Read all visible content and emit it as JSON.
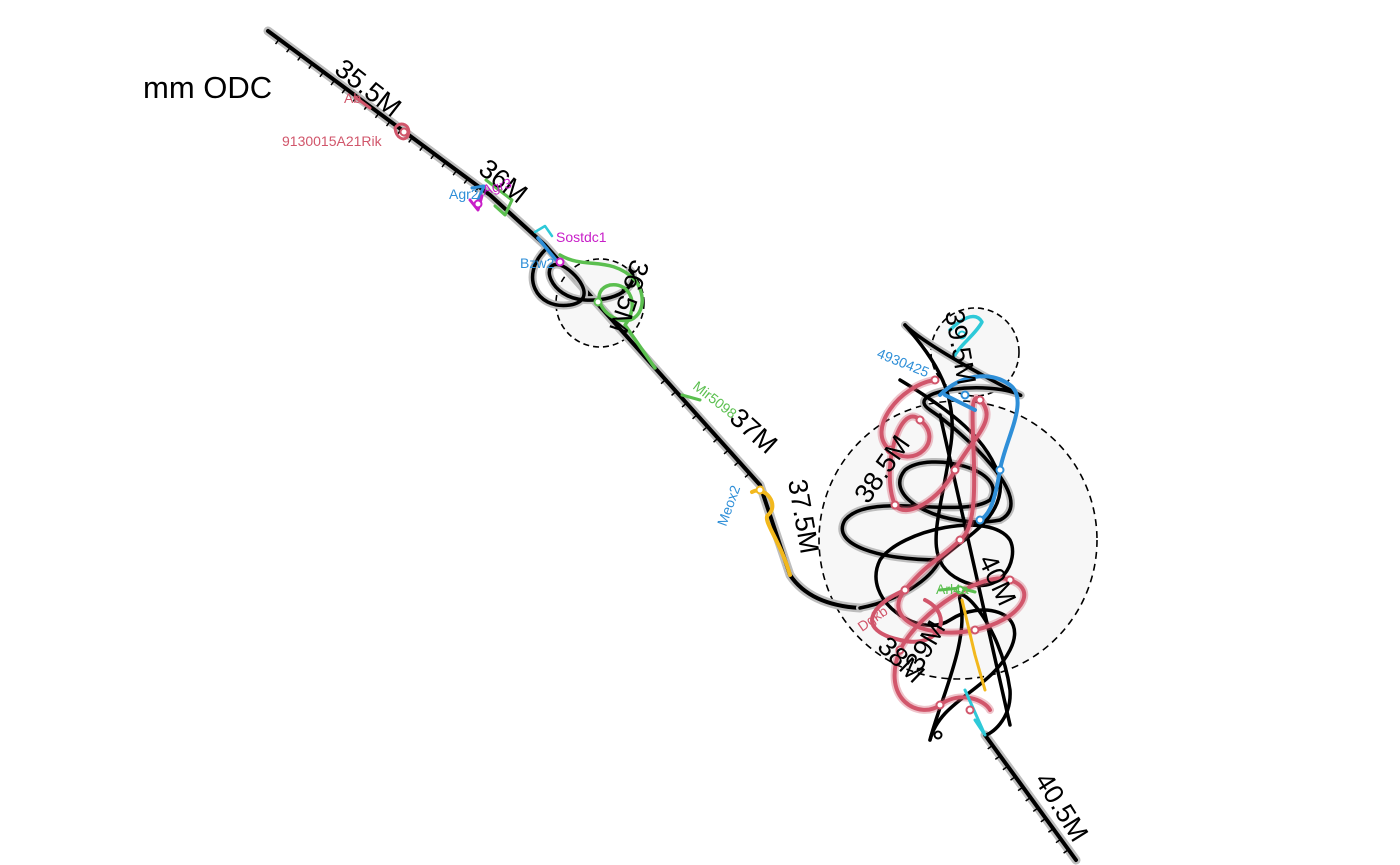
{
  "title": "mm ODC",
  "colors": {
    "backbone": "#000000",
    "backbone_halo": "#bdbdbd",
    "loop_fill": "#f7f7f7",
    "red": "#d1566b",
    "blue": "#2f8fd8",
    "green": "#5bbf4f",
    "magenta": "#c81ec8",
    "cyan": "#2ec9d8",
    "orange": "#f2b81d"
  },
  "positions": [
    "35.5M",
    "36M",
    "36.5M",
    "37M",
    "37.5M",
    "38M",
    "38.5M",
    "39M",
    "39.5M",
    "40M",
    "40.5M"
  ],
  "genes": [
    {
      "label": "Ab",
      "color": "red"
    },
    {
      "label": "9130015A21Rik",
      "color": "red"
    },
    {
      "label": "Agr2",
      "color": "blue"
    },
    {
      "label": "Agr3",
      "color": "magenta"
    },
    {
      "label": "Sostdc1",
      "color": "magenta"
    },
    {
      "label": "Bzw2",
      "color": "blue"
    },
    {
      "label": "Mir5098",
      "color": "green"
    },
    {
      "label": "Meox2",
      "color": "blue"
    },
    {
      "label": "4930425",
      "color": "blue"
    },
    {
      "label": "Dgkb",
      "color": "red"
    },
    {
      "label": "Arl4a",
      "color": "green"
    }
  ]
}
